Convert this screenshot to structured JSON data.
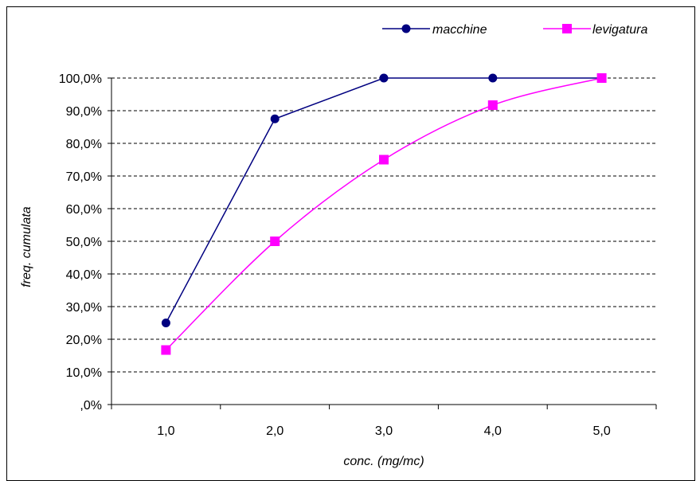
{
  "chart_data": {
    "type": "line",
    "title": "",
    "xlabel": "conc.  (mg/mc)",
    "ylabel": "freq. cumulata",
    "x": [
      1.0,
      2.0,
      3.0,
      4.0,
      5.0
    ],
    "x_tick_labels": [
      "1,0",
      "2,0",
      "3,0",
      "4,0",
      "5,0"
    ],
    "y_tick_labels": [
      ",0%",
      "10,0%",
      "20,0%",
      "30,0%",
      "40,0%",
      "50,0%",
      "60,0%",
      "70,0%",
      "80,0%",
      "90,0%",
      "100,0%"
    ],
    "ylim": [
      0,
      100
    ],
    "grid": "horizontal dashed",
    "legend_position": "top",
    "series": [
      {
        "name": "macchine",
        "color": "#000080",
        "marker": "circle",
        "values": [
          25.0,
          87.5,
          100.0,
          100.0,
          100.0
        ]
      },
      {
        "name": "levigatura",
        "color": "#ff00ff",
        "marker": "square",
        "smooth": true,
        "values": [
          16.7,
          50.0,
          75.0,
          91.7,
          100.0
        ]
      }
    ]
  }
}
